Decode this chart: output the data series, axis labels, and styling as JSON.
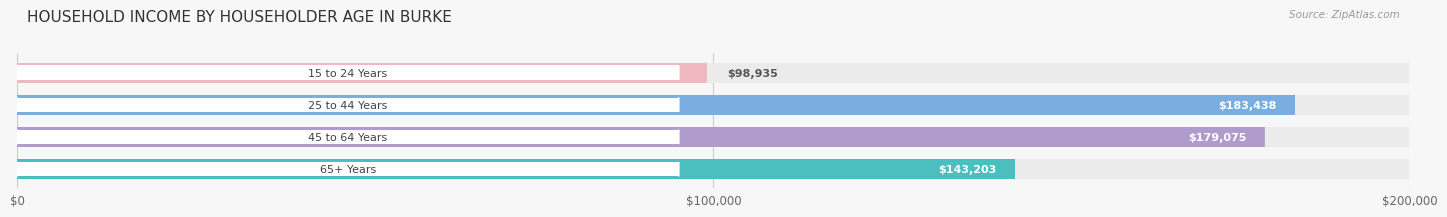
{
  "title": "HOUSEHOLD INCOME BY HOUSEHOLDER AGE IN BURKE",
  "source_text": "Source: ZipAtlas.com",
  "categories": [
    "15 to 24 Years",
    "25 to 44 Years",
    "45 to 64 Years",
    "65+ Years"
  ],
  "values": [
    98935,
    183438,
    179075,
    143203
  ],
  "bar_colors": [
    "#f0b8c0",
    "#7aade0",
    "#b09ccc",
    "#4bbfbf"
  ],
  "label_colors": [
    "#555555",
    "#ffffff",
    "#ffffff",
    "#ffffff"
  ],
  "bg_track_color": "#ebebeb",
  "bg_track_border": "#d8d8d8",
  "background_color": "#f7f7f7",
  "xlim": [
    0,
    200000
  ],
  "xticks": [
    0,
    100000,
    200000
  ],
  "xtick_labels": [
    "$0",
    "$100,000",
    "$200,000"
  ],
  "value_labels": [
    "$98,935",
    "$183,438",
    "$179,075",
    "$143,203"
  ],
  "title_fontsize": 11,
  "figsize": [
    14.06,
    2.33
  ]
}
